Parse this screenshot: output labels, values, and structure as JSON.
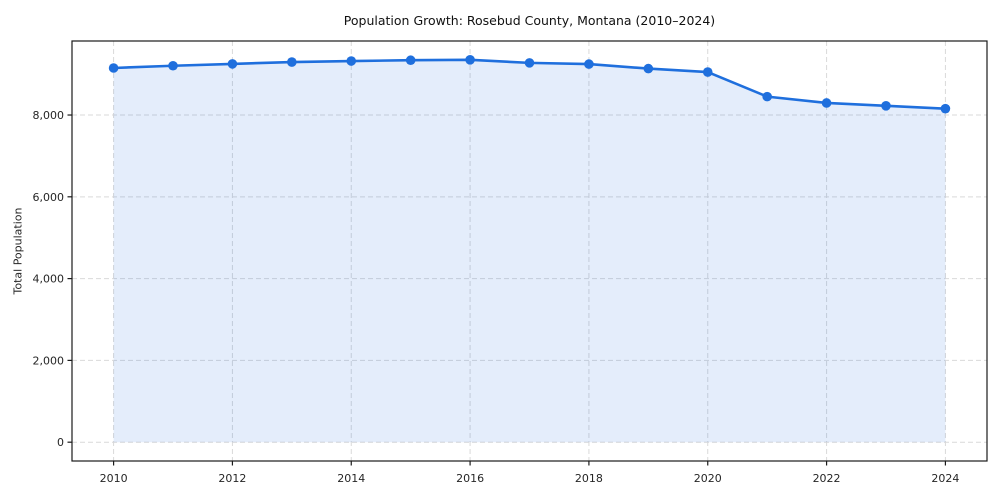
{
  "figure": {
    "background": "#ffffff"
  },
  "chart_data": {
    "type": "line",
    "title": "Population Growth: Rosebud County, Montana (2010–2024)",
    "xlabel": "",
    "ylabel": "Total Population",
    "x": [
      2010,
      2011,
      2012,
      2013,
      2014,
      2015,
      2016,
      2017,
      2018,
      2019,
      2020,
      2021,
      2022,
      2023,
      2024
    ],
    "values": [
      9150,
      9205,
      9250,
      9295,
      9320,
      9340,
      9350,
      9275,
      9245,
      9135,
      9050,
      8450,
      8295,
      8225,
      8155
    ],
    "series_name": "Total Population",
    "x_ticks": [
      2010,
      2012,
      2014,
      2016,
      2018,
      2020,
      2022,
      2024
    ],
    "y_ticks": [
      0,
      2000,
      4000,
      6000,
      8000
    ],
    "y_tick_labels": [
      "0",
      "2,000",
      "4,000",
      "6,000",
      "8,000"
    ],
    "xlim": [
      2009.3,
      2024.7
    ],
    "ylim": [
      -460,
      9810
    ],
    "grid": true,
    "grid_style": "dashed",
    "legend": "none",
    "marker": "circle",
    "fill_to_zero": true,
    "colors": {
      "line": "#1f6fdd",
      "marker": "#1f6fdd",
      "fill": "rgba(31,111,221,0.12)",
      "grid": "#d9d9d9",
      "spine": "#1a1a1a",
      "tick_text": "#262626",
      "title_text": "#111111"
    }
  }
}
